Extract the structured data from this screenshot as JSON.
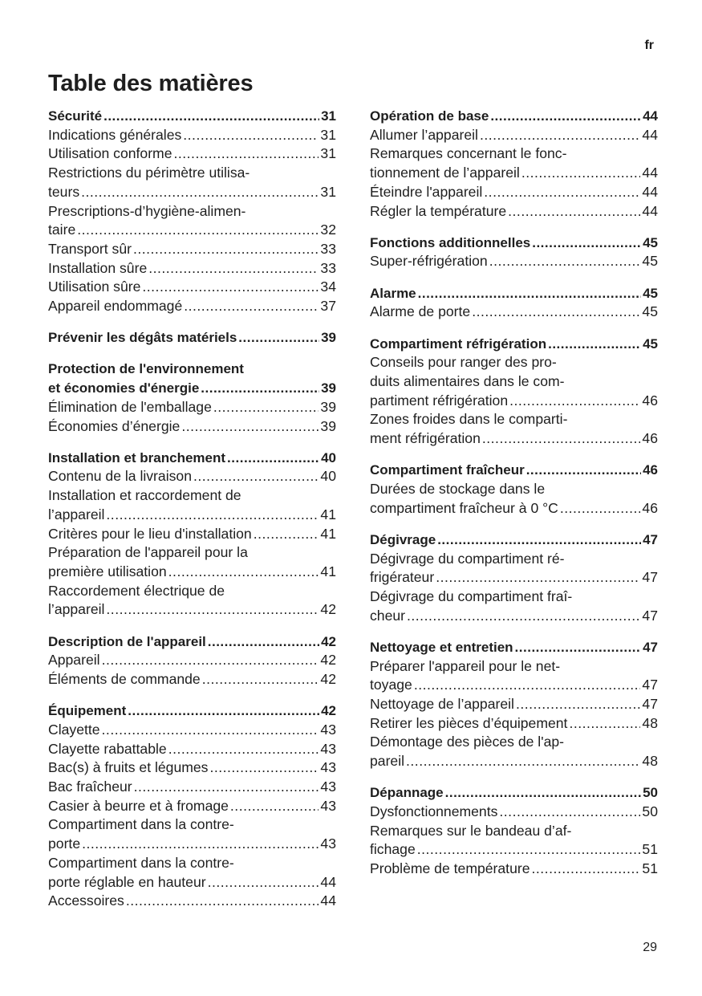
{
  "language": "fr",
  "title": "Table des matières",
  "page_number": "29",
  "columns": [
    [
      {
        "heading": {
          "lines": [
            "Sécurité"
          ],
          "page": "31"
        },
        "entries": [
          {
            "lines": [
              "Indications générales"
            ],
            "page": "31"
          },
          {
            "lines": [
              "Utilisation conforme"
            ],
            "page": "31"
          },
          {
            "lines": [
              "Restrictions du périmètre utilisa-",
              "teurs"
            ],
            "page": "31"
          },
          {
            "lines": [
              "Prescriptions-d’hygiène-alimen-",
              "taire"
            ],
            "page": "32"
          },
          {
            "lines": [
              "Transport sûr"
            ],
            "page": "33"
          },
          {
            "lines": [
              "Installation sûre"
            ],
            "page": "33"
          },
          {
            "lines": [
              "Utilisation sûre"
            ],
            "page": "34"
          },
          {
            "lines": [
              "Appareil endommagé"
            ],
            "page": "37"
          }
        ]
      },
      {
        "heading": {
          "lines": [
            "Prévenir les dégâts matériels"
          ],
          "page": "39"
        },
        "entries": []
      },
      {
        "heading": {
          "lines": [
            "Protection de l'environnement",
            "et économies d'énergie"
          ],
          "page": "39"
        },
        "entries": [
          {
            "lines": [
              "Élimination de l'emballage"
            ],
            "page": "39"
          },
          {
            "lines": [
              "Économies d’énergie"
            ],
            "page": "39"
          }
        ]
      },
      {
        "heading": {
          "lines": [
            "Installation et branchement"
          ],
          "page": "40"
        },
        "entries": [
          {
            "lines": [
              "Contenu de la livraison"
            ],
            "page": "40"
          },
          {
            "lines": [
              "Installation et raccordement de",
              "l’appareil"
            ],
            "page": "41"
          },
          {
            "lines": [
              "Critères pour le lieu d'installation"
            ],
            "page": "41"
          },
          {
            "lines": [
              "Préparation de l'appareil pour la",
              "première utilisation"
            ],
            "page": "41"
          },
          {
            "lines": [
              "Raccordement électrique de",
              "l’appareil"
            ],
            "page": "42"
          }
        ]
      },
      {
        "heading": {
          "lines": [
            "Description de l'appareil"
          ],
          "page": "42"
        },
        "entries": [
          {
            "lines": [
              "Appareil"
            ],
            "page": "42"
          },
          {
            "lines": [
              "Éléments de commande"
            ],
            "page": "42"
          }
        ]
      },
      {
        "heading": {
          "lines": [
            "Équipement"
          ],
          "page": "42"
        },
        "entries": [
          {
            "lines": [
              "Clayette"
            ],
            "page": "43"
          },
          {
            "lines": [
              "Clayette rabattable"
            ],
            "page": "43"
          },
          {
            "lines": [
              "Bac(s) à fruits et légumes"
            ],
            "page": "43"
          },
          {
            "lines": [
              "Bac fraîcheur"
            ],
            "page": "43"
          },
          {
            "lines": [
              "Casier à beurre et à fromage"
            ],
            "page": "43"
          },
          {
            "lines": [
              "Compartiment dans la contre-",
              "porte"
            ],
            "page": "43"
          },
          {
            "lines": [
              "Compartiment dans la contre-",
              "porte réglable en hauteur"
            ],
            "page": "44"
          },
          {
            "lines": [
              "Accessoires"
            ],
            "page": "44"
          }
        ]
      }
    ],
    [
      {
        "heading": {
          "lines": [
            "Opération de base"
          ],
          "page": "44"
        },
        "entries": [
          {
            "lines": [
              "Allumer l’appareil"
            ],
            "page": "44"
          },
          {
            "lines": [
              "Remarques concernant le fonc-",
              "tionnement de l’appareil"
            ],
            "page": "44"
          },
          {
            "lines": [
              "Éteindre l'appareil"
            ],
            "page": "44"
          },
          {
            "lines": [
              "Régler la température"
            ],
            "page": "44"
          }
        ]
      },
      {
        "heading": {
          "lines": [
            "Fonctions additionnelles"
          ],
          "page": "45"
        },
        "entries": [
          {
            "lines": [
              "Super-réfrigération"
            ],
            "page": "45"
          }
        ]
      },
      {
        "heading": {
          "lines": [
            "Alarme"
          ],
          "page": "45"
        },
        "entries": [
          {
            "lines": [
              "Alarme de porte"
            ],
            "page": "45"
          }
        ]
      },
      {
        "heading": {
          "lines": [
            "Compartiment réfrigération"
          ],
          "page": "45"
        },
        "entries": [
          {
            "lines": [
              "Conseils pour ranger des pro-",
              "duits alimentaires dans le com-",
              "partiment réfrigération"
            ],
            "page": "46"
          },
          {
            "lines": [
              "Zones froides dans le comparti-",
              "ment réfrigération"
            ],
            "page": "46"
          }
        ]
      },
      {
        "heading": {
          "lines": [
            "Compartiment fraîcheur"
          ],
          "page": "46"
        },
        "entries": [
          {
            "lines": [
              "Durées de stockage dans le",
              "compartiment fraîcheur à 0 °C"
            ],
            "page": "46"
          }
        ]
      },
      {
        "heading": {
          "lines": [
            "Dégivrage"
          ],
          "page": "47"
        },
        "entries": [
          {
            "lines": [
              "Dégivrage du compartiment ré-",
              "frigérateur"
            ],
            "page": "47"
          },
          {
            "lines": [
              "Dégivrage du compartiment fraî-",
              "cheur"
            ],
            "page": "47"
          }
        ]
      },
      {
        "heading": {
          "lines": [
            "Nettoyage et entretien"
          ],
          "page": "47"
        },
        "entries": [
          {
            "lines": [
              "Préparer l'appareil pour le net-",
              "toyage"
            ],
            "page": "47"
          },
          {
            "lines": [
              "Nettoyage de l’appareil"
            ],
            "page": "47"
          },
          {
            "lines": [
              "Retirer les pièces d’équipement"
            ],
            "page": "48"
          },
          {
            "lines": [
              "Démontage des pièces de l'ap-",
              "pareil"
            ],
            "page": "48"
          }
        ]
      },
      {
        "heading": {
          "lines": [
            "Dépannage"
          ],
          "page": "50"
        },
        "entries": [
          {
            "lines": [
              "Dysfonctionnements"
            ],
            "page": "50"
          },
          {
            "lines": [
              "Remarques sur le bandeau d’af-",
              "fichage"
            ],
            "page": "51"
          },
          {
            "lines": [
              "Problème de température"
            ],
            "page": "51"
          }
        ]
      }
    ]
  ]
}
